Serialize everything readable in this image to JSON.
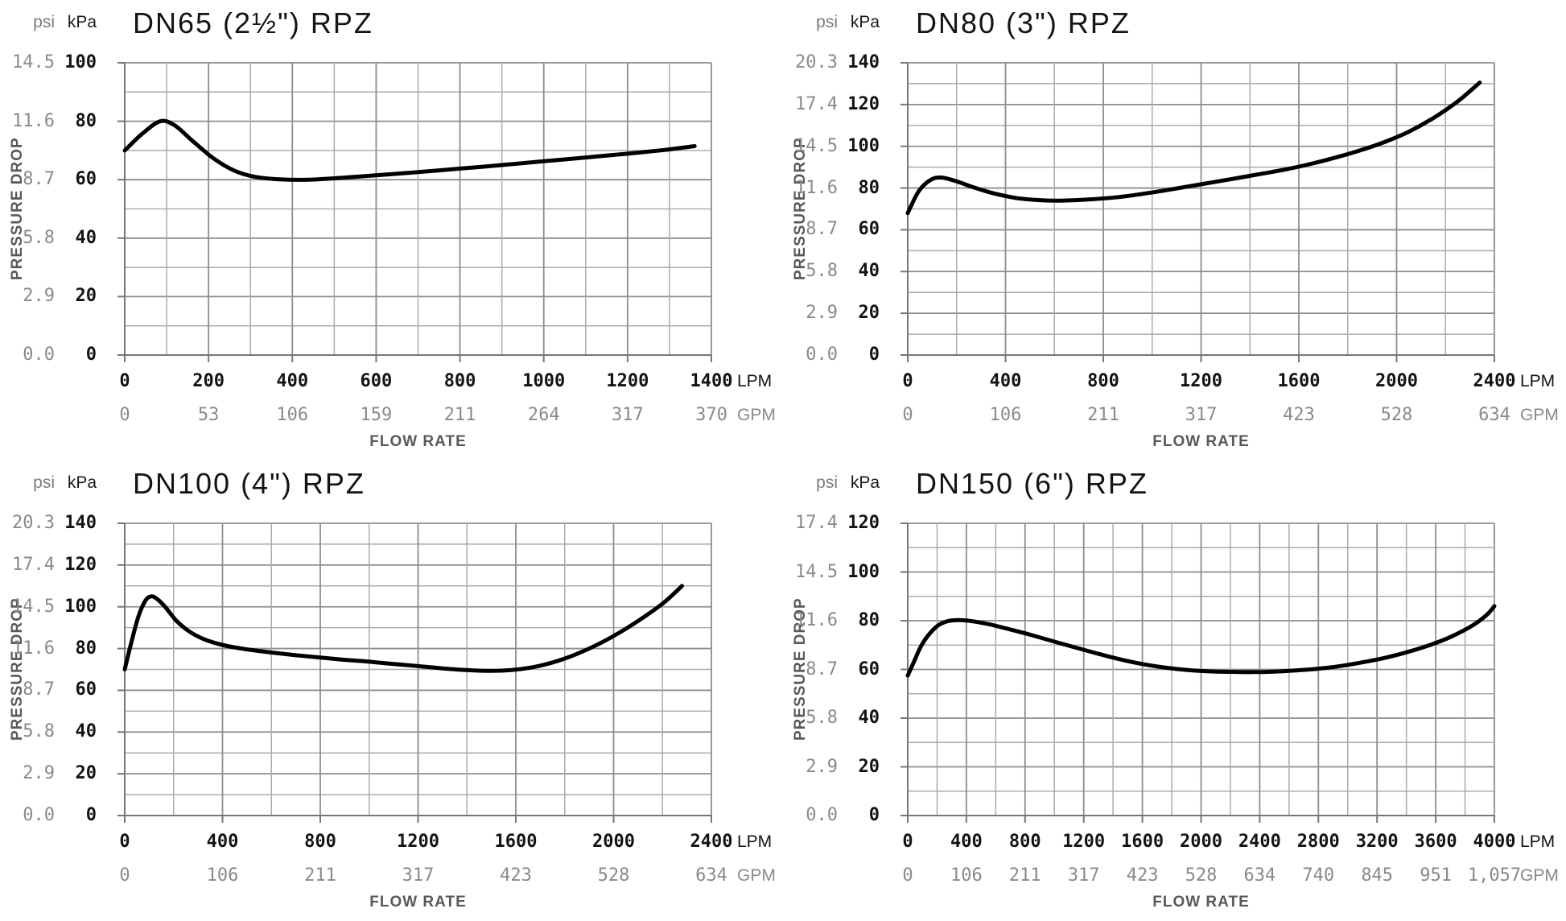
{
  "shared": {
    "y_axis_title": "PRESSURE DROP",
    "x_axis_title": "FLOW RATE",
    "psi_unit": "psi",
    "kpa_unit": "kPa",
    "lpm_unit": "LPM",
    "gpm_unit": "GPM"
  },
  "colors": {
    "background": "#ffffff",
    "curve": "#000000",
    "grid_minor": "#ababab",
    "grid_major": "#8d8d8d",
    "axis": "#767676",
    "title_text": "#141414",
    "kpa_text": "#141414",
    "psi_text": "#8a8a8a",
    "lpm_text": "#141414",
    "gpm_text": "#8a8a8a",
    "axis_title_text": "#595959"
  },
  "chart_data": [
    {
      "type": "line",
      "title": "DN65 (2½\") RPZ",
      "xlabel": "FLOW RATE",
      "ylabel": "PRESSURE DROP",
      "y_max_kpa": 100,
      "kpa_ticks": [
        "100",
        "80",
        "60",
        "40",
        "20",
        "0"
      ],
      "psi_ticks": [
        "14.5",
        "11.6",
        "8.7",
        "5.8",
        "2.9",
        "0.0"
      ],
      "x_max_lpm": 1400,
      "x_minor_step_lpm": 100,
      "x_label_step_lpm": 200,
      "lpm_ticks": [
        "0",
        "200",
        "400",
        "600",
        "800",
        "1000",
        "1200",
        "1400"
      ],
      "gpm_ticks": [
        "0",
        "53",
        "106",
        "159",
        "211",
        "264",
        "317",
        "370"
      ],
      "points_lpm_kpa": [
        [
          0,
          70
        ],
        [
          40,
          75.5
        ],
        [
          85,
          80
        ],
        [
          120,
          78.5
        ],
        [
          160,
          73.5
        ],
        [
          210,
          67.5
        ],
        [
          260,
          63.2
        ],
        [
          310,
          61
        ],
        [
          370,
          60.1
        ],
        [
          440,
          60
        ],
        [
          520,
          60.7
        ],
        [
          600,
          61.5
        ],
        [
          700,
          62.6
        ],
        [
          800,
          63.8
        ],
        [
          900,
          65
        ],
        [
          1000,
          66.3
        ],
        [
          1100,
          67.6
        ],
        [
          1200,
          68.9
        ],
        [
          1290,
          70.2
        ],
        [
          1360,
          71.5
        ]
      ]
    },
    {
      "type": "line",
      "title": "DN80 (3\") RPZ",
      "xlabel": "FLOW RATE",
      "ylabel": "PRESSURE DROP",
      "y_max_kpa": 140,
      "kpa_ticks": [
        "140",
        "120",
        "100",
        "80",
        "60",
        "40",
        "20",
        "0"
      ],
      "psi_ticks": [
        "20.3",
        "17.4",
        "14.5",
        "11.6",
        "8.7",
        "5.8",
        "2.9",
        "0.0"
      ],
      "x_max_lpm": 2400,
      "x_minor_step_lpm": 200,
      "x_label_step_lpm": 400,
      "lpm_ticks": [
        "0",
        "400",
        "800",
        "1200",
        "1600",
        "2000",
        "2400"
      ],
      "gpm_ticks": [
        "0",
        "106",
        "211",
        "317",
        "423",
        "528",
        "634"
      ],
      "points_lpm_kpa": [
        [
          0,
          68
        ],
        [
          45,
          78.5
        ],
        [
          95,
          84
        ],
        [
          140,
          85
        ],
        [
          200,
          83.2
        ],
        [
          270,
          80.3
        ],
        [
          350,
          77.5
        ],
        [
          440,
          75.3
        ],
        [
          540,
          74.2
        ],
        [
          640,
          74
        ],
        [
          740,
          74.5
        ],
        [
          850,
          75.5
        ],
        [
          950,
          77
        ],
        [
          1050,
          78.8
        ],
        [
          1150,
          80.8
        ],
        [
          1250,
          82.8
        ],
        [
          1350,
          84.8
        ],
        [
          1450,
          86.9
        ],
        [
          1550,
          89
        ],
        [
          1650,
          91.6
        ],
        [
          1750,
          94.6
        ],
        [
          1850,
          98
        ],
        [
          1950,
          102
        ],
        [
          2050,
          107
        ],
        [
          2150,
          113.5
        ],
        [
          2250,
          121.5
        ],
        [
          2340,
          130.5
        ]
      ]
    },
    {
      "type": "line",
      "title": "DN100 (4\") RPZ",
      "xlabel": "FLOW RATE",
      "ylabel": "PRESSURE DROP",
      "y_max_kpa": 140,
      "kpa_ticks": [
        "140",
        "120",
        "100",
        "80",
        "60",
        "40",
        "20",
        "0"
      ],
      "psi_ticks": [
        "20.3",
        "17.4",
        "14.5",
        "11.6",
        "8.7",
        "5.8",
        "2.9",
        "0.0"
      ],
      "x_max_lpm": 2400,
      "x_minor_step_lpm": 200,
      "x_label_step_lpm": 400,
      "lpm_ticks": [
        "0",
        "400",
        "800",
        "1200",
        "1600",
        "2000",
        "2400"
      ],
      "gpm_ticks": [
        "0",
        "106",
        "211",
        "317",
        "423",
        "528",
        "634"
      ],
      "points_lpm_kpa": [
        [
          0,
          70
        ],
        [
          25,
          82
        ],
        [
          55,
          95
        ],
        [
          85,
          103
        ],
        [
          110,
          105
        ],
        [
          135,
          103.5
        ],
        [
          165,
          100
        ],
        [
          210,
          93.5
        ],
        [
          260,
          88.5
        ],
        [
          310,
          85.2
        ],
        [
          360,
          83
        ],
        [
          420,
          81.2
        ],
        [
          500,
          79.6
        ],
        [
          600,
          78.1
        ],
        [
          700,
          76.8
        ],
        [
          800,
          75.7
        ],
        [
          900,
          74.6
        ],
        [
          1000,
          73.7
        ],
        [
          1100,
          72.6
        ],
        [
          1200,
          71.6
        ],
        [
          1300,
          70.5
        ],
        [
          1400,
          69.7
        ],
        [
          1500,
          69.3
        ],
        [
          1600,
          69.9
        ],
        [
          1700,
          71.8
        ],
        [
          1800,
          75.2
        ],
        [
          1900,
          80
        ],
        [
          2000,
          86
        ],
        [
          2100,
          93.2
        ],
        [
          2200,
          101.5
        ],
        [
          2280,
          110
        ]
      ]
    },
    {
      "type": "line",
      "title": "DN150 (6\") RPZ",
      "xlabel": "FLOW RATE",
      "ylabel": "PRESSURE DROP",
      "y_max_kpa": 120,
      "kpa_ticks": [
        "120",
        "100",
        "80",
        "60",
        "40",
        "20",
        "0"
      ],
      "psi_ticks": [
        "17.4",
        "14.5",
        "11.6",
        "8.7",
        "5.8",
        "2.9",
        "0.0"
      ],
      "x_max_lpm": 4000,
      "x_minor_step_lpm": 200,
      "x_label_step_lpm": 400,
      "lpm_ticks": [
        "0",
        "400",
        "800",
        "1200",
        "1600",
        "2000",
        "2400",
        "2800",
        "3200",
        "3600",
        "4000"
      ],
      "gpm_ticks": [
        "0",
        "106",
        "211",
        "317",
        "423",
        "528",
        "634",
        "740",
        "845",
        "951",
        "1,057"
      ],
      "points_lpm_kpa": [
        [
          0,
          57.5
        ],
        [
          45,
          63.5
        ],
        [
          90,
          69.5
        ],
        [
          140,
          74
        ],
        [
          200,
          77.8
        ],
        [
          260,
          79.6
        ],
        [
          320,
          80.2
        ],
        [
          400,
          80.1
        ],
        [
          480,
          79.4
        ],
        [
          580,
          78.2
        ],
        [
          700,
          76.4
        ],
        [
          850,
          74
        ],
        [
          1000,
          71.4
        ],
        [
          1150,
          68.9
        ],
        [
          1300,
          66.4
        ],
        [
          1450,
          64.1
        ],
        [
          1600,
          62.2
        ],
        [
          1750,
          60.8
        ],
        [
          1900,
          59.8
        ],
        [
          2050,
          59.2
        ],
        [
          2200,
          59
        ],
        [
          2350,
          58.9
        ],
        [
          2500,
          59.1
        ],
        [
          2650,
          59.6
        ],
        [
          2800,
          60.3
        ],
        [
          2950,
          61.4
        ],
        [
          3100,
          62.9
        ],
        [
          3250,
          64.7
        ],
        [
          3400,
          67
        ],
        [
          3550,
          69.8
        ],
        [
          3700,
          73.3
        ],
        [
          3850,
          78
        ],
        [
          3950,
          82.5
        ],
        [
          4000,
          86
        ]
      ]
    }
  ]
}
